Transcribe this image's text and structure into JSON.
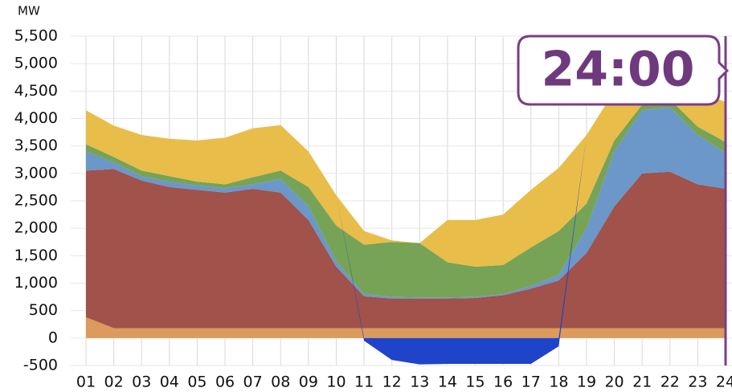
{
  "chart_data": {
    "type": "stacked_area",
    "y_label": "MW",
    "annotation": "24:00",
    "categories": [
      "01",
      "02",
      "03",
      "04",
      "05",
      "06",
      "07",
      "08",
      "09",
      "10",
      "11",
      "12",
      "13",
      "14",
      "15",
      "16",
      "17",
      "18",
      "19",
      "20",
      "21",
      "22",
      "23",
      "24"
    ],
    "series": [
      {
        "color": "#dc9a5c",
        "values": [
          380,
          180,
          180,
          180,
          180,
          180,
          180,
          180,
          180,
          180,
          180,
          180,
          180,
          180,
          180,
          180,
          180,
          180,
          180,
          180,
          180,
          180,
          180,
          180
        ]
      },
      {
        "color": "#a0524b",
        "values": [
          2670,
          2900,
          2690,
          2570,
          2520,
          2470,
          2540,
          2470,
          1970,
          1120,
          580,
          540,
          540,
          540,
          550,
          600,
          720,
          870,
          1370,
          2220,
          2820,
          2850,
          2620,
          2540
        ]
      },
      {
        "color": "#6b97c9",
        "values": [
          350,
          120,
          80,
          100,
          80,
          80,
          80,
          250,
          250,
          100,
          40,
          30,
          20,
          20,
          20,
          20,
          50,
          100,
          450,
          1000,
          1150,
          1170,
          900,
          650
        ]
      },
      {
        "color": "#76a356",
        "values": [
          130,
          100,
          100,
          100,
          70,
          70,
          130,
          150,
          350,
          650,
          900,
          1000,
          990,
          640,
          550,
          530,
          700,
          800,
          450,
          200,
          100,
          150,
          150,
          200
        ]
      },
      {
        "color": "#e8bd4a",
        "values": [
          620,
          570,
          650,
          680,
          750,
          850,
          890,
          830,
          650,
          550,
          250,
          30,
          0,
          770,
          850,
          920,
          1050,
          1150,
          1250,
          900,
          450,
          350,
          650,
          730
        ]
      },
      {
        "color": "#1f44c9",
        "values": [
          0,
          0,
          0,
          0,
          0,
          0,
          0,
          0,
          0,
          0,
          -50,
          -400,
          -480,
          -470,
          -470,
          -470,
          -470,
          -150,
          0,
          0,
          0,
          0,
          0,
          0
        ]
      }
    ],
    "ylim": [
      -500,
      5500
    ],
    "yticks": [
      -500,
      0,
      500,
      {
        "value": 1000,
        "label": "1,000"
      },
      {
        "value": 1500,
        "label": "1,500"
      },
      {
        "value": 2000,
        "label": "2,000"
      },
      {
        "value": 2500,
        "label": "2,500"
      },
      {
        "value": 3000,
        "label": "3,000"
      },
      {
        "value": 3500,
        "label": "3,500"
      },
      {
        "value": 4000,
        "label": "4,000"
      },
      {
        "value": 4500,
        "label": "4,500"
      },
      {
        "value": 5000,
        "label": "5,000"
      },
      {
        "value": 5500,
        "label": "5,500"
      }
    ],
    "grid": true
  }
}
